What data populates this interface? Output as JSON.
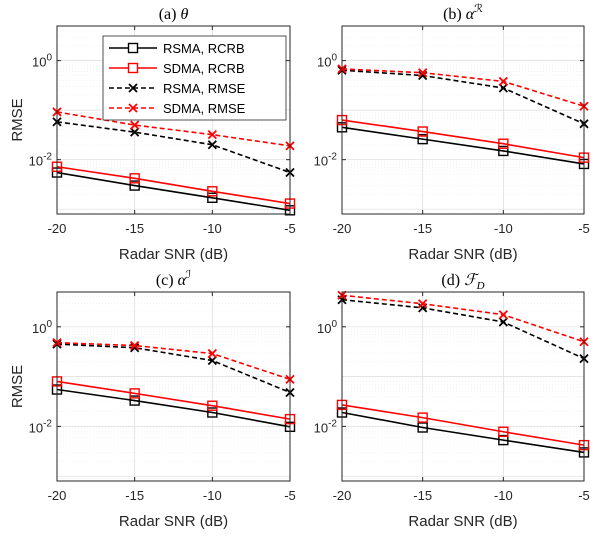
{
  "chart_data": [
    {
      "type": "line",
      "title": "(a) θ",
      "xlabel": "Radar SNR (dB)",
      "ylabel": "RMSE",
      "yscale": "log",
      "ylim": [
        0.0008,
        5
      ],
      "xlim": [
        -20,
        -5
      ],
      "x": [
        -20,
        -15,
        -10,
        -5
      ],
      "xticks": [
        "-20",
        "-15",
        "-10",
        "-5"
      ],
      "yticks": [
        {
          "value": 1,
          "base": "10",
          "exp": "0"
        },
        {
          "value": 0.01,
          "base": "10",
          "exp": "-2"
        }
      ],
      "grid": true,
      "legend": "top-right",
      "series": [
        {
          "name": "RSMA, RCRB",
          "color": "#000000",
          "dash": "solid",
          "marker": "square",
          "values": [
            0.0055,
            0.003,
            0.0017,
            0.00095
          ]
        },
        {
          "name": "SDMA, RCRB",
          "color": "#ff0000",
          "dash": "solid",
          "marker": "square",
          "values": [
            0.0072,
            0.0042,
            0.0023,
            0.0013
          ]
        },
        {
          "name": "RSMA, RMSE",
          "color": "#000000",
          "dash": "dashed",
          "marker": "x",
          "values": [
            0.058,
            0.036,
            0.02,
            0.0055
          ]
        },
        {
          "name": "SDMA, RMSE",
          "color": "#ff0000",
          "dash": "dashed",
          "marker": "x",
          "values": [
            0.092,
            0.05,
            0.032,
            0.019
          ]
        }
      ]
    },
    {
      "type": "line",
      "title": "(b) α",
      "title_sup": "ℛ",
      "xlabel": "Radar SNR (dB)",
      "ylabel": "",
      "yscale": "log",
      "ylim": [
        0.0008,
        5
      ],
      "xlim": [
        -20,
        -5
      ],
      "x": [
        -20,
        -15,
        -10,
        -5
      ],
      "xticks": [
        "-20",
        "-15",
        "-10",
        "-5"
      ],
      "yticks": [
        {
          "value": 1,
          "base": "10",
          "exp": "0"
        },
        {
          "value": 0.01,
          "base": "10",
          "exp": "-2"
        }
      ],
      "grid": true,
      "series": [
        {
          "name": "RSMA, RCRB",
          "color": "#000000",
          "dash": "solid",
          "marker": "square",
          "values": [
            0.045,
            0.026,
            0.015,
            0.0082
          ]
        },
        {
          "name": "SDMA, RCRB",
          "color": "#ff0000",
          "dash": "solid",
          "marker": "square",
          "values": [
            0.063,
            0.037,
            0.021,
            0.011
          ]
        },
        {
          "name": "RSMA, RMSE",
          "color": "#000000",
          "dash": "dashed",
          "marker": "x",
          "values": [
            0.64,
            0.5,
            0.28,
            0.053
          ]
        },
        {
          "name": "SDMA, RMSE",
          "color": "#ff0000",
          "dash": "dashed",
          "marker": "x",
          "values": [
            0.68,
            0.57,
            0.38,
            0.12
          ]
        }
      ]
    },
    {
      "type": "line",
      "title": "(c) α",
      "title_sup": "ℐ",
      "xlabel": "Radar SNR (dB)",
      "ylabel": "RMSE",
      "yscale": "log",
      "ylim": [
        0.0008,
        5
      ],
      "xlim": [
        -20,
        -5
      ],
      "x": [
        -20,
        -15,
        -10,
        -5
      ],
      "xticks": [
        "-20",
        "-15",
        "-10",
        "-5"
      ],
      "yticks": [
        {
          "value": 1,
          "base": "10",
          "exp": "0"
        },
        {
          "value": 0.01,
          "base": "10",
          "exp": "-2"
        }
      ],
      "grid": true,
      "series": [
        {
          "name": "RSMA, RCRB",
          "color": "#000000",
          "dash": "solid",
          "marker": "square",
          "values": [
            0.055,
            0.033,
            0.019,
            0.0098
          ]
        },
        {
          "name": "SDMA, RCRB",
          "color": "#ff0000",
          "dash": "solid",
          "marker": "square",
          "values": [
            0.08,
            0.046,
            0.026,
            0.014
          ]
        },
        {
          "name": "RSMA, RMSE",
          "color": "#000000",
          "dash": "dashed",
          "marker": "x",
          "values": [
            0.45,
            0.38,
            0.21,
            0.048
          ]
        },
        {
          "name": "SDMA, RMSE",
          "color": "#ff0000",
          "dash": "dashed",
          "marker": "x",
          "values": [
            0.48,
            0.42,
            0.29,
            0.088
          ]
        }
      ]
    },
    {
      "type": "line",
      "title": "(d) ℱ",
      "title_sub": "D",
      "xlabel": "Radar SNR (dB)",
      "ylabel": "",
      "yscale": "log",
      "ylim": [
        0.0008,
        5
      ],
      "xlim": [
        -20,
        -5
      ],
      "x": [
        -20,
        -15,
        -10,
        -5
      ],
      "xticks": [
        "-20",
        "-15",
        "-10",
        "-5"
      ],
      "yticks": [
        {
          "value": 1,
          "base": "10",
          "exp": "0"
        },
        {
          "value": 0.01,
          "base": "10",
          "exp": "-2"
        }
      ],
      "grid": true,
      "series": [
        {
          "name": "RSMA, RCRB",
          "color": "#000000",
          "dash": "solid",
          "marker": "square",
          "values": [
            0.019,
            0.0095,
            0.0053,
            0.003
          ]
        },
        {
          "name": "SDMA, RCRB",
          "color": "#ff0000",
          "dash": "solid",
          "marker": "square",
          "values": [
            0.027,
            0.015,
            0.0078,
            0.0042
          ]
        },
        {
          "name": "RSMA, RMSE",
          "color": "#000000",
          "dash": "dashed",
          "marker": "x",
          "values": [
            3.5,
            2.4,
            1.25,
            0.23
          ]
        },
        {
          "name": "SDMA, RMSE",
          "color": "#ff0000",
          "dash": "dashed",
          "marker": "x",
          "values": [
            4.3,
            2.9,
            1.75,
            0.5
          ]
        }
      ]
    }
  ]
}
